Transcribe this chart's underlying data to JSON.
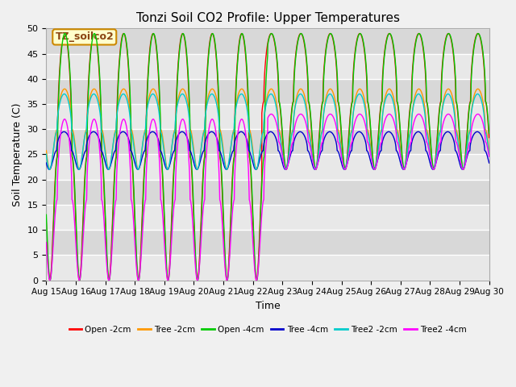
{
  "title": "Tonzi Soil CO2 Profile: Upper Temperatures",
  "xlabel": "Time",
  "ylabel": "Soil Temperature (C)",
  "ylim": [
    0,
    50
  ],
  "yticks": [
    0,
    5,
    10,
    15,
    20,
    25,
    30,
    35,
    40,
    45,
    50
  ],
  "x_tick_labels": [
    "Aug 15",
    "Aug 16",
    "Aug 17",
    "Aug 18",
    "Aug 19",
    "Aug 20",
    "Aug 21",
    "Aug 22",
    "Aug 23",
    "Aug 24",
    "Aug 25",
    "Aug 26",
    "Aug 27",
    "Aug 28",
    "Aug 29",
    "Aug 30"
  ],
  "series": [
    {
      "label": "Open -2cm",
      "color": "#ff0000"
    },
    {
      "label": "Tree -2cm",
      "color": "#ff9900"
    },
    {
      "label": "Open -4cm",
      "color": "#00cc00"
    },
    {
      "label": "Tree -4cm",
      "color": "#0000cc"
    },
    {
      "label": "Tree2 -2cm",
      "color": "#00cccc"
    },
    {
      "label": "Tree2 -4cm",
      "color": "#ff00ff"
    }
  ],
  "annotation_text": "TZ_soilco2",
  "annotation_color": "#8b4513",
  "annotation_bg": "#ffffcc",
  "annotation_border": "#cc8800",
  "plot_bg_light": "#e8e8e8",
  "plot_bg_dark": "#d8d8d8",
  "grid_color": "#ffffff",
  "title_fontsize": 11,
  "fig_bg": "#f0f0f0"
}
